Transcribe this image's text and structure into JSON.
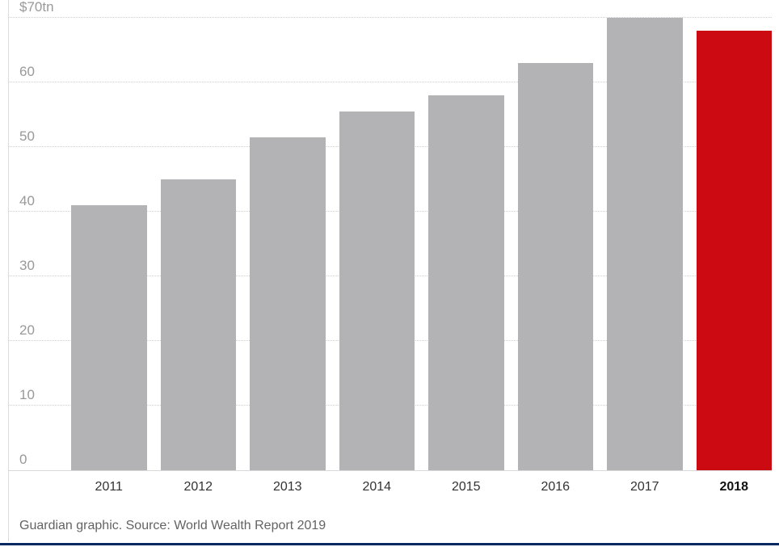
{
  "chart_data": {
    "type": "bar",
    "title": "",
    "xlabel": "",
    "ylabel": "",
    "unit": "$tn",
    "categories": [
      "2011",
      "2012",
      "2013",
      "2014",
      "2015",
      "2016",
      "2017",
      "2018"
    ],
    "values": [
      41,
      45,
      51.5,
      55.5,
      58,
      63,
      70,
      68
    ],
    "ylim": [
      0,
      70
    ],
    "yticks": [
      {
        "value": 0,
        "label": "0"
      },
      {
        "value": 10,
        "label": "10"
      },
      {
        "value": 20,
        "label": "20"
      },
      {
        "value": 30,
        "label": "30"
      },
      {
        "value": 40,
        "label": "40"
      },
      {
        "value": 50,
        "label": "50"
      },
      {
        "value": 60,
        "label": "60"
      },
      {
        "value": 70,
        "label": "$70tn"
      }
    ],
    "grid": true,
    "legend": false,
    "highlight_category": "2018",
    "bar_color": "#b3b3b5",
    "highlight_color": "#cc0a11"
  },
  "caption": "Guardian graphic. Source: World Wealth Report 2019",
  "colors": {
    "grid": "#cfcfcf",
    "axis_line": "#d8d8d8",
    "y_tick_label": "#999999",
    "x_tick_label": "#333333",
    "highlight_tick_label": "#121212",
    "caption_text": "#636363",
    "bottom_divider": "#052962",
    "left_divider": "#dcdcdc"
  }
}
